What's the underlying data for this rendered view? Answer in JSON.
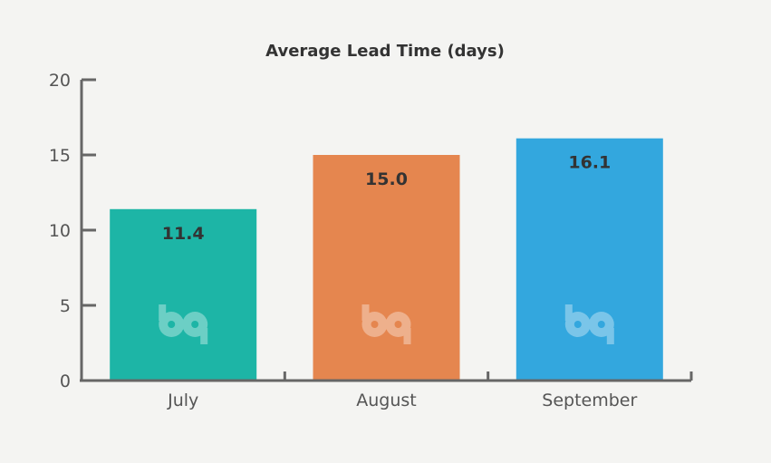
{
  "chart_data": {
    "type": "bar",
    "title": "Average Lead Time (days)",
    "categories": [
      "July",
      "August",
      "September"
    ],
    "values": [
      11.4,
      15.0,
      16.1
    ],
    "value_labels": [
      "11.4",
      "15.0",
      "16.1"
    ],
    "ylim": [
      0,
      20
    ],
    "yticks": [
      0,
      5,
      10,
      15,
      20
    ],
    "ytick_labels": [
      "0",
      "5",
      "10",
      "15",
      "20"
    ],
    "xlabel": "",
    "ylabel": "",
    "grid": false,
    "legend": "none",
    "bar_colors": [
      "#1db5a6",
      "#e5864f",
      "#33a7de"
    ],
    "axis_color": "#666666",
    "watermark_icon": "bp-logo-icon"
  }
}
